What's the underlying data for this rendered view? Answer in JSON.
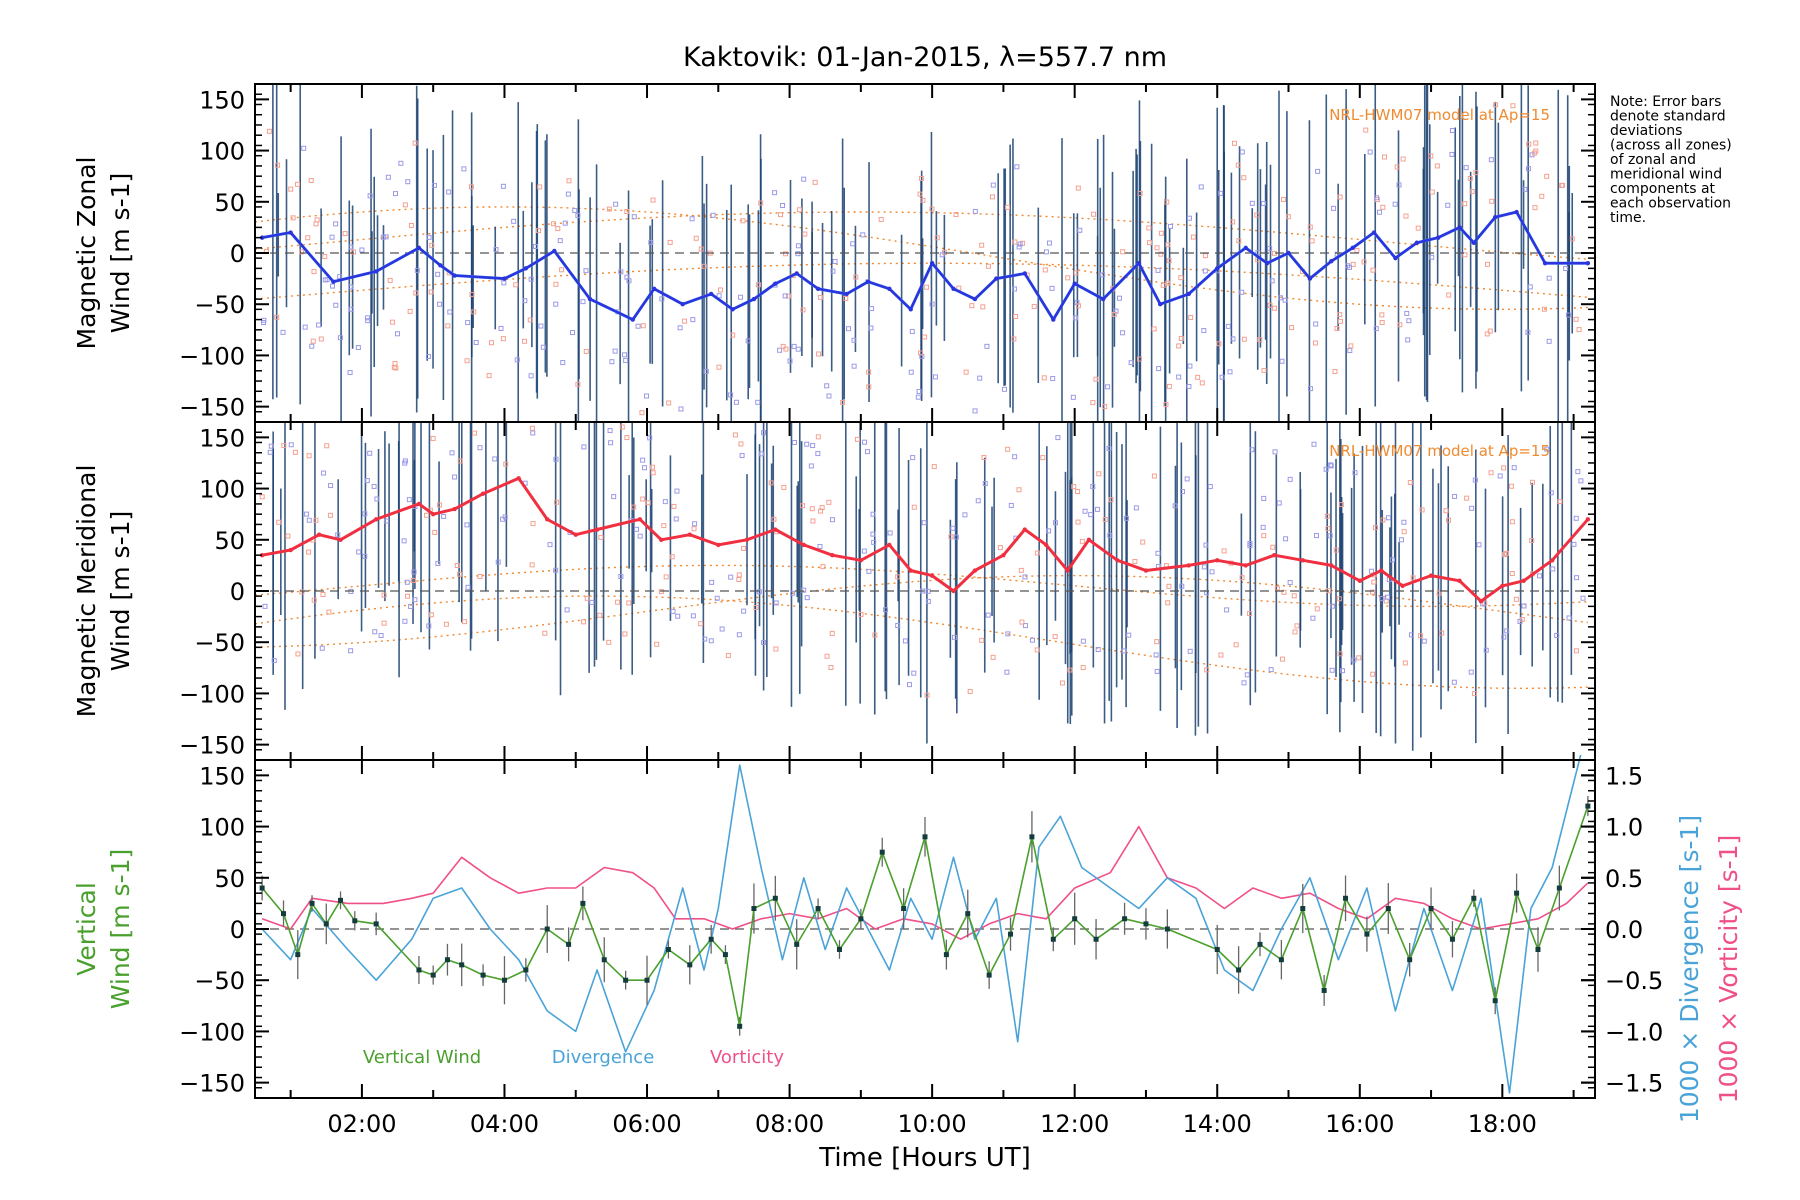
{
  "title": "Kaktovik: 01-Jan-2015, λ=557.7 nm",
  "note": [
    "Note: Error bars",
    "denote standard",
    "deviations",
    "(across all zones)",
    "of zonal and",
    "meridional wind",
    "components at",
    "each observation",
    "time."
  ],
  "colors": {
    "zonal": "#2a35e0",
    "meridional": "#f03040",
    "vertical": "#4aa02c",
    "divergence": "#4aa3d8",
    "vorticity": "#f0508a",
    "model": "#f08a30",
    "scatterBlue": "#9a9ae8",
    "scatterRed": "#f5a090",
    "errorBar": "#1a4070"
  },
  "chart_data": [
    {
      "type": "line",
      "panel": "zonal",
      "ylabel": [
        "Magnetic Zonal",
        "Wind [m s-1]"
      ],
      "ylim": [
        -165,
        165
      ],
      "yticks": [
        -150,
        -100,
        -50,
        0,
        50,
        100,
        150
      ],
      "model_label": "NRL-HWM07 model at Ap=15",
      "series": [
        {
          "x": [
            0.6,
            1.0,
            1.6,
            2.2,
            2.8,
            3.1,
            3.3,
            4.0,
            4.3,
            4.7,
            5.2,
            5.8,
            6.1,
            6.5,
            6.9,
            7.2,
            7.5,
            7.8,
            8.1,
            8.4,
            8.8,
            9.1,
            9.4,
            9.7,
            10.0,
            10.3,
            10.6,
            10.9,
            11.3,
            11.7,
            12.0,
            12.4,
            12.9,
            13.2,
            13.6,
            14.0,
            14.4,
            14.7,
            15.0,
            15.3,
            15.6,
            15.9,
            16.2,
            16.5,
            16.8,
            17.1,
            17.4,
            17.6,
            17.9,
            18.2,
            18.6,
            19.2
          ],
          "values": [
            15,
            20,
            -28,
            -18,
            5,
            -12,
            -22,
            -25,
            -15,
            2,
            -45,
            -65,
            -35,
            -50,
            -40,
            -55,
            -45,
            -30,
            -20,
            -35,
            -40,
            -28,
            -35,
            -55,
            -10,
            -35,
            -45,
            -25,
            -20,
            -65,
            -30,
            -45,
            -10,
            -50,
            -40,
            -15,
            5,
            -10,
            0,
            -25,
            -8,
            5,
            20,
            -5,
            10,
            15,
            25,
            10,
            35,
            40,
            -10,
            -10
          ]
        }
      ]
    },
    {
      "type": "line",
      "panel": "meridional",
      "ylabel": [
        "Magnetic Meridional",
        "Wind [m s-1]"
      ],
      "ylim": [
        -165,
        165
      ],
      "yticks": [
        -150,
        -100,
        -50,
        0,
        50,
        100,
        150
      ],
      "model_label": "NRL-HWM07 model at Ap=15",
      "series": [
        {
          "x": [
            0.6,
            1.0,
            1.4,
            1.7,
            2.2,
            2.8,
            3.0,
            3.3,
            3.7,
            4.2,
            4.6,
            5.0,
            5.3,
            5.9,
            6.2,
            6.6,
            7.0,
            7.4,
            7.8,
            8.2,
            8.6,
            9.0,
            9.4,
            9.7,
            10.0,
            10.3,
            10.6,
            11.0,
            11.3,
            11.6,
            11.9,
            12.2,
            12.6,
            13.0,
            13.6,
            14.0,
            14.4,
            14.8,
            15.2,
            15.6,
            16.0,
            16.3,
            16.6,
            17.0,
            17.4,
            17.7,
            18.0,
            18.3,
            18.7,
            19.2
          ],
          "values": [
            35,
            40,
            55,
            50,
            70,
            85,
            75,
            80,
            95,
            110,
            70,
            55,
            60,
            70,
            50,
            55,
            45,
            50,
            60,
            45,
            35,
            30,
            45,
            20,
            15,
            0,
            20,
            35,
            60,
            45,
            20,
            50,
            30,
            20,
            25,
            30,
            25,
            35,
            30,
            25,
            10,
            20,
            5,
            15,
            10,
            -10,
            5,
            10,
            30,
            70
          ]
        }
      ]
    },
    {
      "type": "line",
      "panel": "vertical",
      "ylabel": [
        "Vertical",
        "Wind [m s-1]"
      ],
      "ylim": [
        -165,
        165
      ],
      "yticks": [
        -150,
        -100,
        -50,
        0,
        50,
        100,
        150
      ],
      "y2label_div": "1000 × Divergence [s-1]",
      "y2label_vort": "1000 × Vorticity [s-1]",
      "y2lim": [
        -1.65,
        1.65
      ],
      "y2ticks": [
        -1.5,
        -1.0,
        -0.5,
        0.0,
        0.5,
        1.0,
        1.5
      ],
      "y2ticklabels": [
        "-1.5",
        "-1.0",
        "-0.5",
        "0.0",
        "0.5",
        "1.0",
        "1.5"
      ],
      "x_ticks": [
        2,
        4,
        6,
        8,
        10,
        12,
        14,
        16,
        18
      ],
      "x_ticklabels": [
        "02:00",
        "04:00",
        "06:00",
        "08:00",
        "10:00",
        "12:00",
        "14:00",
        "16:00",
        "18:00"
      ],
      "xlabel": "Time [Hours UT]",
      "xlim": [
        0.5,
        19.3
      ],
      "legend": [
        "Vertical Wind",
        "Divergence",
        "Vorticity"
      ],
      "series": [
        {
          "name": "Vertical Wind",
          "x": [
            0.6,
            0.9,
            1.1,
            1.3,
            1.5,
            1.7,
            1.9,
            2.2,
            2.8,
            3.0,
            3.2,
            3.4,
            3.7,
            4.0,
            4.3,
            4.6,
            4.9,
            5.1,
            5.4,
            5.7,
            6.0,
            6.3,
            6.6,
            6.9,
            7.1,
            7.3,
            7.5,
            7.8,
            8.1,
            8.4,
            8.7,
            9.0,
            9.3,
            9.6,
            9.9,
            10.2,
            10.5,
            10.8,
            11.1,
            11.4,
            11.7,
            12.0,
            12.3,
            12.7,
            13.0,
            13.3,
            14.0,
            14.3,
            14.6,
            14.9,
            15.2,
            15.5,
            15.8,
            16.1,
            16.4,
            16.7,
            17.0,
            17.3,
            17.6,
            17.9,
            18.2,
            18.5,
            18.8,
            19.2
          ],
          "values": [
            40,
            15,
            -25,
            25,
            5,
            28,
            8,
            5,
            -40,
            -45,
            -30,
            -35,
            -45,
            -50,
            -40,
            0,
            -15,
            25,
            -30,
            -50,
            -50,
            -20,
            -35,
            -10,
            -25,
            -95,
            20,
            30,
            -15,
            20,
            -20,
            10,
            75,
            20,
            90,
            -25,
            15,
            -45,
            -5,
            90,
            -10,
            10,
            -10,
            10,
            5,
            0,
            -20,
            -40,
            -15,
            -30,
            20,
            -60,
            30,
            -5,
            20,
            -30,
            20,
            -10,
            30,
            -70,
            35,
            -20,
            40,
            120
          ]
        },
        {
          "name": "Divergence",
          "axis": "y2",
          "x": [
            0.6,
            1.0,
            1.3,
            1.8,
            2.2,
            2.7,
            3.0,
            3.4,
            3.8,
            4.2,
            4.6,
            5.0,
            5.3,
            5.7,
            6.1,
            6.5,
            6.8,
            7.0,
            7.3,
            7.6,
            7.9,
            8.2,
            8.5,
            8.8,
            9.1,
            9.4,
            9.7,
            10.0,
            10.3,
            10.6,
            10.9,
            11.2,
            11.5,
            11.8,
            12.1,
            12.5,
            12.9,
            13.3,
            13.7,
            14.1,
            14.5,
            14.9,
            15.3,
            15.7,
            16.1,
            16.5,
            16.9,
            17.3,
            17.7,
            18.1,
            18.4,
            18.7,
            19.1
          ],
          "values": [
            0.0,
            -0.3,
            0.2,
            -0.2,
            -0.5,
            -0.1,
            0.3,
            0.4,
            0.0,
            -0.3,
            -0.8,
            -1.0,
            -0.4,
            -1.2,
            -0.6,
            0.4,
            -0.4,
            0.2,
            1.6,
            0.6,
            -0.3,
            0.5,
            -0.2,
            0.4,
            0.0,
            -0.4,
            0.3,
            -0.1,
            0.7,
            -0.1,
            0.3,
            -1.1,
            0.8,
            1.1,
            0.6,
            0.4,
            0.2,
            0.5,
            0.3,
            -0.4,
            -0.6,
            0.0,
            0.5,
            -0.3,
            0.4,
            -0.8,
            0.2,
            -0.6,
            0.3,
            -1.6,
            0.2,
            0.6,
            1.7
          ]
        },
        {
          "name": "Vorticity",
          "axis": "y2",
          "x": [
            0.6,
            1.0,
            1.3,
            1.8,
            2.3,
            2.7,
            3.0,
            3.4,
            3.8,
            4.2,
            4.6,
            5.0,
            5.4,
            5.8,
            6.1,
            6.4,
            6.8,
            7.2,
            7.6,
            8.0,
            8.4,
            8.8,
            9.2,
            9.6,
            10.0,
            10.4,
            10.8,
            11.2,
            11.6,
            12.0,
            12.5,
            12.9,
            13.3,
            13.7,
            14.1,
            14.5,
            14.9,
            15.3,
            15.7,
            16.1,
            16.5,
            16.9,
            17.3,
            17.7,
            18.1,
            18.5,
            18.9,
            19.2
          ],
          "values": [
            0.1,
            0.0,
            0.3,
            0.25,
            0.25,
            0.3,
            0.35,
            0.7,
            0.5,
            0.35,
            0.4,
            0.4,
            0.6,
            0.55,
            0.4,
            0.1,
            0.1,
            0.0,
            0.1,
            0.15,
            0.1,
            0.2,
            0.0,
            0.1,
            0.05,
            -0.1,
            0.05,
            0.15,
            0.1,
            0.4,
            0.55,
            1.0,
            0.5,
            0.4,
            0.2,
            0.4,
            0.3,
            0.35,
            0.2,
            0.1,
            0.3,
            0.25,
            0.1,
            0.0,
            0.05,
            0.1,
            0.25,
            0.45
          ]
        }
      ]
    }
  ]
}
